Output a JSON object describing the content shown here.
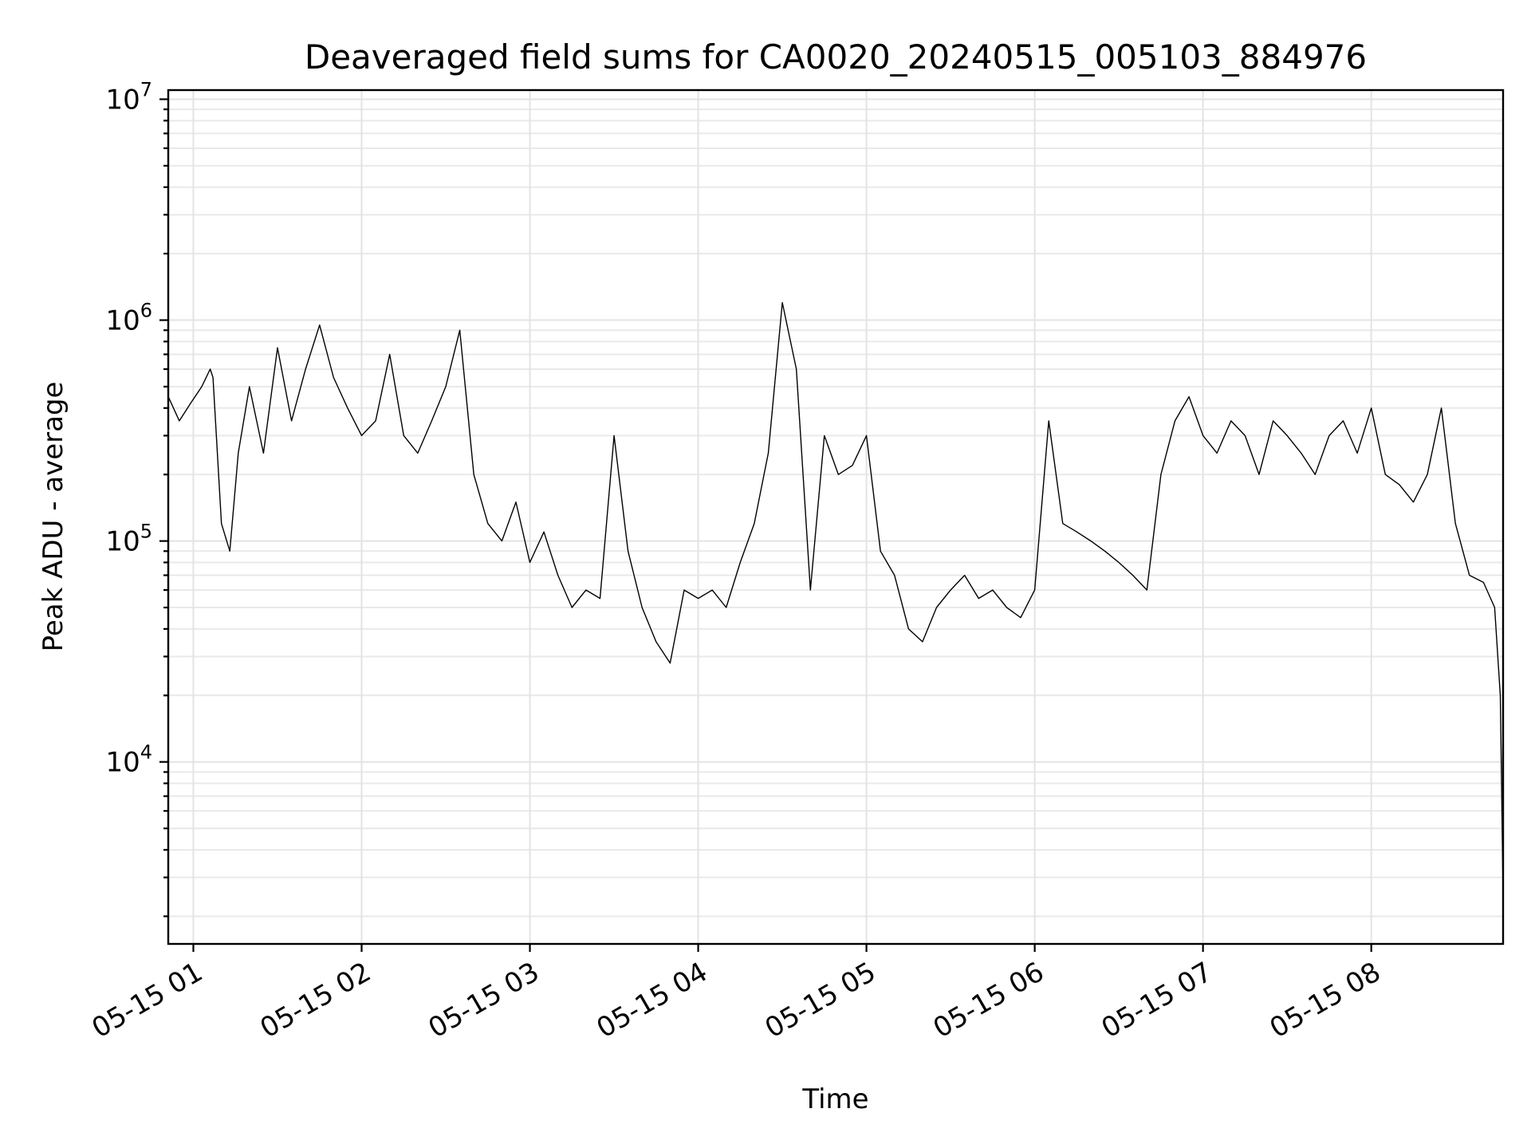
{
  "chart_data": {
    "type": "line",
    "title": "Deaveraged field sums for CA0020_20240515_005103_884976",
    "xlabel": "Time",
    "ylabel": "Peak ADU - average",
    "yscale": "log",
    "ylim": [
      1500,
      11000000
    ],
    "xlim": [
      "2024-05-15 00:51:03",
      "2024-05-15 08:47:00"
    ],
    "x_ticks": [
      "05-15 01",
      "05-15 02",
      "05-15 03",
      "05-15 04",
      "05-15 05",
      "05-15 06",
      "05-15 07",
      "05-15 08"
    ],
    "y_ticks": [
      {
        "base": "10",
        "exp": "4",
        "value": 10000
      },
      {
        "base": "10",
        "exp": "5",
        "value": 100000
      },
      {
        "base": "10",
        "exp": "6",
        "value": 1000000
      },
      {
        "base": "10",
        "exp": "7",
        "value": 10000000
      }
    ],
    "grid": true,
    "line_color": "#000000",
    "series": [
      {
        "x": [
          "2024-05-15 00:51",
          "2024-05-15 00:55",
          "2024-05-15 00:59",
          "2024-05-15 01:03",
          "2024-05-15 01:06",
          "2024-05-15 01:07",
          "2024-05-15 01:10",
          "2024-05-15 01:13",
          "2024-05-15 01:16",
          "2024-05-15 01:20",
          "2024-05-15 01:25",
          "2024-05-15 01:30",
          "2024-05-15 01:35",
          "2024-05-15 01:40",
          "2024-05-15 01:45",
          "2024-05-15 01:50",
          "2024-05-15 01:55",
          "2024-05-15 02:00",
          "2024-05-15 02:05",
          "2024-05-15 02:10",
          "2024-05-15 02:15",
          "2024-05-15 02:20",
          "2024-05-15 02:25",
          "2024-05-15 02:30",
          "2024-05-15 02:35",
          "2024-05-15 02:40",
          "2024-05-15 02:45",
          "2024-05-15 02:50",
          "2024-05-15 02:55",
          "2024-05-15 03:00",
          "2024-05-15 03:05",
          "2024-05-15 03:10",
          "2024-05-15 03:15",
          "2024-05-15 03:20",
          "2024-05-15 03:25",
          "2024-05-15 03:30",
          "2024-05-15 03:35",
          "2024-05-15 03:40",
          "2024-05-15 03:45",
          "2024-05-15 03:50",
          "2024-05-15 03:55",
          "2024-05-15 04:00",
          "2024-05-15 04:05",
          "2024-05-15 04:10",
          "2024-05-15 04:15",
          "2024-05-15 04:20",
          "2024-05-15 04:25",
          "2024-05-15 04:30",
          "2024-05-15 04:35",
          "2024-05-15 04:40",
          "2024-05-15 04:45",
          "2024-05-15 04:50",
          "2024-05-15 04:55",
          "2024-05-15 05:00",
          "2024-05-15 05:05",
          "2024-05-15 05:10",
          "2024-05-15 05:15",
          "2024-05-15 05:20",
          "2024-05-15 05:25",
          "2024-05-15 05:30",
          "2024-05-15 05:35",
          "2024-05-15 05:40",
          "2024-05-15 05:45",
          "2024-05-15 05:50",
          "2024-05-15 05:55",
          "2024-05-15 06:00",
          "2024-05-15 06:05",
          "2024-05-15 06:10",
          "2024-05-15 06:15",
          "2024-05-15 06:20",
          "2024-05-15 06:25",
          "2024-05-15 06:30",
          "2024-05-15 06:35",
          "2024-05-15 06:40",
          "2024-05-15 06:45",
          "2024-05-15 06:50",
          "2024-05-15 06:55",
          "2024-05-15 07:00",
          "2024-05-15 07:05",
          "2024-05-15 07:10",
          "2024-05-15 07:15",
          "2024-05-15 07:20",
          "2024-05-15 07:25",
          "2024-05-15 07:30",
          "2024-05-15 07:35",
          "2024-05-15 07:40",
          "2024-05-15 07:45",
          "2024-05-15 07:50",
          "2024-05-15 07:55",
          "2024-05-15 08:00",
          "2024-05-15 08:05",
          "2024-05-15 08:10",
          "2024-05-15 08:15",
          "2024-05-15 08:20",
          "2024-05-15 08:25",
          "2024-05-15 08:30",
          "2024-05-15 08:35",
          "2024-05-15 08:40",
          "2024-05-15 08:44",
          "2024-05-15 08:46",
          "2024-05-15 08:47"
        ],
        "y": [
          450000,
          350000,
          420000,
          500000,
          600000,
          550000,
          120000,
          90000,
          250000,
          500000,
          250000,
          750000,
          350000,
          600000,
          950000,
          550000,
          400000,
          300000,
          350000,
          700000,
          300000,
          250000,
          350000,
          500000,
          900000,
          200000,
          120000,
          100000,
          150000,
          80000,
          110000,
          70000,
          50000,
          60000,
          55000,
          300000,
          90000,
          50000,
          35000,
          28000,
          60000,
          55000,
          60000,
          50000,
          80000,
          120000,
          250000,
          1200000,
          600000,
          60000,
          300000,
          200000,
          220000,
          300000,
          90000,
          70000,
          40000,
          35000,
          50000,
          60000,
          70000,
          55000,
          60000,
          50000,
          45000,
          60000,
          350000,
          120000,
          110000,
          100000,
          90000,
          80000,
          70000,
          60000,
          200000,
          350000,
          450000,
          300000,
          250000,
          350000,
          300000,
          200000,
          350000,
          300000,
          250000,
          200000,
          300000,
          350000,
          250000,
          400000,
          200000,
          180000,
          150000,
          200000,
          400000,
          120000,
          70000,
          65000,
          50000,
          20000,
          2500
        ]
      }
    ]
  }
}
